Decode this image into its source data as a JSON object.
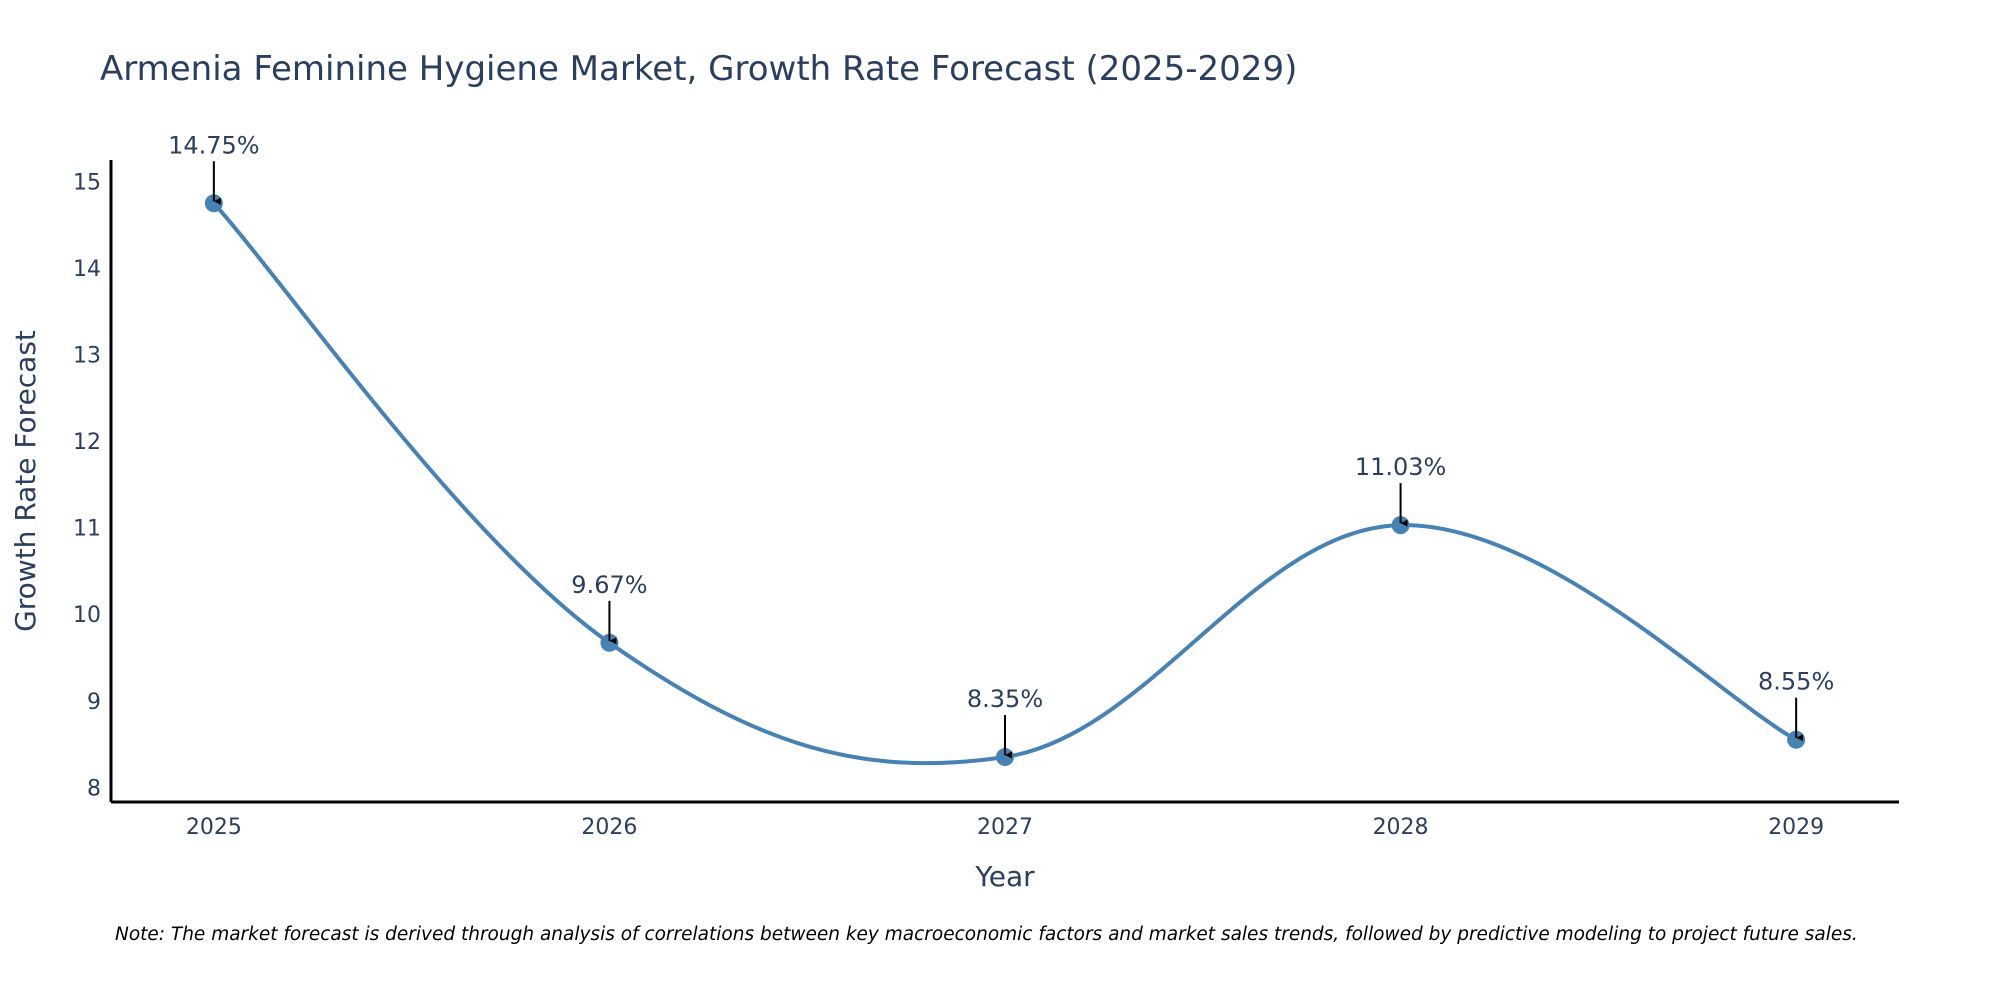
{
  "colors": {
    "line": "#4682b4",
    "marker": "#4682b4",
    "axis": "#000000",
    "arrow": "#000000",
    "text": "#2a3f5f"
  },
  "chart_data": {
    "type": "line",
    "title": "Armenia Feminine Hygiene Market, Growth Rate Forecast (2025-2029)",
    "xlabel": "Year",
    "ylabel": "Growth Rate Forecast",
    "categories": [
      "2025",
      "2026",
      "2027",
      "2028",
      "2029"
    ],
    "x": [
      2025,
      2026,
      2027,
      2028,
      2029
    ],
    "series": [
      {
        "name": "Growth Rate Forecast",
        "values": [
          14.75,
          9.67,
          8.35,
          11.03,
          8.55
        ]
      }
    ],
    "data_labels": [
      "14.75%",
      "9.67%",
      "8.35%",
      "11.03%",
      "8.55%"
    ],
    "yticks": [
      8,
      9,
      10,
      11,
      12,
      13,
      14,
      15
    ],
    "ytick_labels": [
      "8",
      "9",
      "10",
      "11",
      "12",
      "13",
      "14",
      "15"
    ],
    "xtick_labels": [
      "2025",
      "2026",
      "2027",
      "2028",
      "2029"
    ],
    "ylim": [
      7.83,
      15.25
    ],
    "xlim": [
      2024.74,
      2029.26
    ],
    "grid": false,
    "line_shape": "spline",
    "note": "Note: The market forecast is derived through analysis of correlations between key macroeconomic factors and market sales trends, followed by predictive modeling to project future sales."
  }
}
